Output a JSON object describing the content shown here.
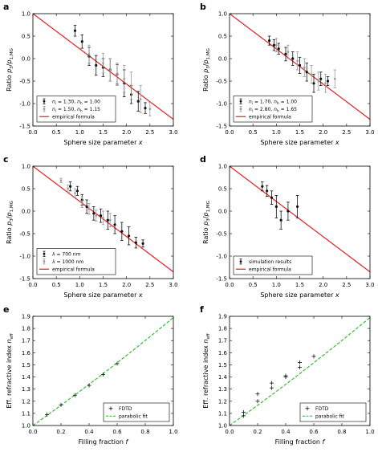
{
  "chart_data": [
    {
      "panel": "a",
      "type": "scatter",
      "xlabel_main": "Sphere size parameter ",
      "xlabel_var": "x",
      "ylabel_main": "Ratio ",
      "ylabel_frac": "p",
      "ylabel_sub1": "3",
      "ylabel_slash": "/",
      "ylabel_frac2": "p",
      "ylabel_sub2": "1,MG",
      "xlim": [
        0.0,
        3.0
      ],
      "ylim": [
        -1.5,
        1.0
      ],
      "xticks": [
        "0.0",
        "0.5",
        "1.0",
        "1.5",
        "2.0",
        "2.5",
        "3.0"
      ],
      "yticks": [
        "1.0",
        "0.5",
        "0.0",
        "-0.5",
        "-1.0",
        "-1.5"
      ],
      "legend_position": "bottom-left",
      "line": {
        "name": "empirical formula",
        "x": [
          0.0,
          3.0
        ],
        "y": [
          1.0,
          -1.35
        ],
        "color": "#e02020"
      },
      "series": [
        {
          "name": "n = 1.30, n = 1.00",
          "legend": {
            "a": "n",
            "as": "i",
            "b": " = 1.30, ",
            "c": "n",
            "cs": "h",
            "d": " = 1.00"
          },
          "color": "#111111",
          "x": [
            0.9,
            1.05,
            1.2,
            1.35,
            1.5,
            1.65,
            1.8,
            1.95,
            2.1,
            2.25,
            2.4
          ],
          "y": [
            0.62,
            0.38,
            0.05,
            -0.15,
            -0.2,
            -0.25,
            -0.35,
            -0.55,
            -0.8,
            -0.95,
            -1.1
          ],
          "err": [
            0.12,
            0.15,
            0.2,
            0.22,
            0.2,
            0.25,
            0.22,
            0.3,
            0.2,
            0.22,
            0.12
          ]
        },
        {
          "name": "n = 1.50, n = 1.15",
          "legend": {
            "a": "n",
            "as": "i",
            "b": " = 1.50, ",
            "c": "n",
            "cs": "h",
            "d": " = 1.15"
          },
          "color": "#999999",
          "x": [
            1.2,
            1.5,
            1.65,
            1.8,
            1.95,
            2.1,
            2.3,
            2.5
          ],
          "y": [
            0.1,
            -0.1,
            -0.25,
            -0.35,
            -0.45,
            -0.6,
            -0.9,
            -1.12
          ],
          "err": [
            0.2,
            0.22,
            0.25,
            0.25,
            0.3,
            0.3,
            0.3,
            0.15
          ]
        }
      ]
    },
    {
      "panel": "b",
      "type": "scatter",
      "xlabel_main": "Sphere size parameter ",
      "xlabel_var": "x",
      "ylabel_main": "Ratio ",
      "ylabel_frac": "p",
      "ylabel_sub1": "3",
      "ylabel_slash": "/",
      "ylabel_frac2": "p",
      "ylabel_sub2": "1,MG",
      "xlim": [
        0.0,
        3.0
      ],
      "ylim": [
        -1.5,
        1.0
      ],
      "xticks": [
        "0.0",
        "0.5",
        "1.0",
        "1.5",
        "2.0",
        "2.5",
        "3.0"
      ],
      "yticks": [
        "1.0",
        "0.5",
        "0.0",
        "-0.5",
        "-1.0",
        "-1.5"
      ],
      "legend_position": "bottom-left",
      "line": {
        "name": "empirical formula",
        "x": [
          0.0,
          3.0
        ],
        "y": [
          1.0,
          -1.35
        ],
        "color": "#e02020"
      },
      "series": [
        {
          "name": "n = 1.70, n = 1.00",
          "legend": {
            "a": "n",
            "as": "i",
            "b": " = 1.70, ",
            "c": "n",
            "cs": "h",
            "d": " = 1.00"
          },
          "color": "#111111",
          "x": [
            0.85,
            0.95,
            1.05,
            1.2,
            1.35,
            1.5,
            1.65,
            1.8,
            1.95,
            2.1
          ],
          "y": [
            0.4,
            0.3,
            0.22,
            0.1,
            0.0,
            -0.15,
            -0.3,
            -0.55,
            -0.45,
            -0.5
          ],
          "err": [
            0.1,
            0.12,
            0.12,
            0.15,
            0.15,
            0.18,
            0.2,
            0.2,
            0.15,
            0.1
          ]
        },
        {
          "name": "n = 2.80, n = 1.65",
          "legend": {
            "a": "n",
            "as": "i",
            "b": " = 2.80, ",
            "c": "n",
            "cs": "h",
            "d": " = 1.65"
          },
          "color": "#999999",
          "x": [
            1.0,
            1.25,
            1.45,
            1.6,
            1.75,
            1.9,
            2.05,
            2.25
          ],
          "y": [
            0.3,
            0.15,
            -0.05,
            -0.2,
            -0.35,
            -0.5,
            -0.55,
            -0.45
          ],
          "err": [
            0.15,
            0.15,
            0.2,
            0.2,
            0.2,
            0.2,
            0.2,
            0.2
          ]
        }
      ]
    },
    {
      "panel": "c",
      "type": "scatter",
      "xlabel_main": "Sphere size parameter ",
      "xlabel_var": "x",
      "ylabel_main": "Ratio ",
      "ylabel_frac": "p",
      "ylabel_sub1": "3",
      "ylabel_slash": "/",
      "ylabel_frac2": "p",
      "ylabel_sub2": "1,MG",
      "xlim": [
        0.0,
        3.0
      ],
      "ylim": [
        -1.5,
        1.0
      ],
      "xticks": [
        "0.0",
        "0.5",
        "1.0",
        "1.5",
        "2.0",
        "2.5",
        "3.0"
      ],
      "yticks": [
        "1.0",
        "0.5",
        "0.0",
        "-0.5",
        "-1.0",
        "-1.5"
      ],
      "legend_position": "bottom-left",
      "line": {
        "name": "empirical formula",
        "x": [
          0.0,
          3.0
        ],
        "y": [
          1.0,
          -1.35
        ],
        "color": "#e02020"
      },
      "series": [
        {
          "name": "λ = 700 nm",
          "legend": {
            "a": "λ",
            "as": "",
            "b": " = 700 nm",
            "c": "",
            "cs": "",
            "d": ""
          },
          "color": "#111111",
          "x": [
            0.8,
            0.95,
            1.05,
            1.15,
            1.3,
            1.45,
            1.6,
            1.75,
            1.9,
            2.05,
            2.2,
            2.35
          ],
          "y": [
            0.55,
            0.45,
            0.25,
            0.1,
            -0.05,
            -0.1,
            -0.2,
            -0.3,
            -0.45,
            -0.55,
            -0.7,
            -0.72
          ],
          "err": [
            0.1,
            0.1,
            0.12,
            0.15,
            0.15,
            0.15,
            0.2,
            0.2,
            0.2,
            0.2,
            0.12,
            0.08
          ]
        },
        {
          "name": "λ = 1000 nm",
          "legend": {
            "a": "λ",
            "as": "",
            "b": " = 1000 nm",
            "c": "",
            "cs": "",
            "d": ""
          },
          "color": "#999999",
          "x": [
            0.6,
            0.75,
            0.9,
            1.05,
            1.2,
            1.35,
            1.5,
            1.65
          ],
          "y": [
            0.68,
            0.5,
            0.4,
            0.2,
            0.05,
            -0.1,
            -0.15,
            -0.2
          ],
          "err": [
            0.05,
            0.08,
            0.1,
            0.12,
            0.12,
            0.12,
            0.15,
            0.15
          ]
        }
      ]
    },
    {
      "panel": "d",
      "type": "scatter",
      "xlabel_main": "Sphere size parameter ",
      "xlabel_var": "x",
      "ylabel_main": "Ratio ",
      "ylabel_frac": "p",
      "ylabel_sub1": "3",
      "ylabel_slash": "/",
      "ylabel_frac2": "p",
      "ylabel_sub2": "1,MG",
      "xlim": [
        0.0,
        3.0
      ],
      "ylim": [
        -1.5,
        1.0
      ],
      "xticks": [
        "0.0",
        "0.5",
        "1.0",
        "1.5",
        "2.0",
        "2.5",
        "3.0"
      ],
      "yticks": [
        "1.0",
        "0.5",
        "0.0",
        "-0.5",
        "-1.0",
        "-1.5"
      ],
      "legend_position": "bottom-left",
      "line": {
        "name": "empirical formula",
        "x": [
          0.0,
          3.0
        ],
        "y": [
          1.0,
          -1.35
        ],
        "color": "#e02020"
      },
      "series": [
        {
          "name": "simulation results",
          "legend": {
            "a": "",
            "as": "",
            "b": "simulation results",
            "c": "",
            "cs": "",
            "d": ""
          },
          "color": "#111111",
          "x": [
            0.7,
            0.8,
            0.9,
            1.0,
            1.1,
            1.25,
            1.45
          ],
          "y": [
            0.55,
            0.45,
            0.3,
            0.1,
            -0.2,
            0.0,
            0.1
          ],
          "err": [
            0.1,
            0.12,
            0.15,
            0.25,
            0.2,
            0.2,
            0.25
          ]
        }
      ]
    },
    {
      "panel": "e",
      "type": "scatter",
      "xlabel_main": "Filling fraction ",
      "xlabel_var": "f",
      "ylabel_main": "Eff. refractive index ",
      "ylabel_frac": "n",
      "ylabel_sub1": "eff",
      "ylabel_slash": "",
      "ylabel_frac2": "",
      "ylabel_sub2": "",
      "xlim": [
        0.0,
        1.0
      ],
      "ylim": [
        1.0,
        1.9
      ],
      "xticks": [
        "0.0",
        "0.2",
        "0.4",
        "0.6",
        "0.8",
        "1.0"
      ],
      "yticks": [
        "1.9",
        "1.8",
        "1.7",
        "1.6",
        "1.5",
        "1.4",
        "1.3",
        "1.2",
        "1.1",
        "1.0"
      ],
      "legend_position": "bottom-right",
      "fit": {
        "name": "parabolic fit",
        "color": "#22bb22",
        "a": 1.0,
        "b": 0.82,
        "c": 0.07
      },
      "series": [
        {
          "name": "FDTD",
          "legend": {
            "a": "",
            "as": "",
            "b": "FDTD",
            "c": "",
            "cs": "",
            "d": ""
          },
          "color": "#111111",
          "x": [
            0.1,
            0.2,
            0.3,
            0.4,
            0.5,
            0.6
          ],
          "y": [
            1.09,
            1.17,
            1.25,
            1.33,
            1.42,
            1.51
          ],
          "err": [
            0.005,
            0.005,
            0.005,
            0.008,
            0.008,
            0.008
          ]
        }
      ]
    },
    {
      "panel": "f",
      "type": "scatter",
      "xlabel_main": "Filling fraction ",
      "xlabel_var": "f",
      "ylabel_main": "Eff. refractive index ",
      "ylabel_frac": "n",
      "ylabel_sub1": "eff",
      "ylabel_slash": "",
      "ylabel_frac2": "",
      "ylabel_sub2": "",
      "xlim": [
        0.0,
        1.0
      ],
      "ylim": [
        1.0,
        1.9
      ],
      "xticks": [
        "0.0",
        "0.2",
        "0.4",
        "0.6",
        "0.8",
        "1.0"
      ],
      "yticks": [
        "1.9",
        "1.8",
        "1.7",
        "1.6",
        "1.5",
        "1.4",
        "1.3",
        "1.2",
        "1.1",
        "1.0"
      ],
      "legend_position": "bottom-right",
      "fit": {
        "name": "parabolic fit",
        "color": "#22bb22",
        "a": 1.0,
        "b": 0.82,
        "c": 0.07
      },
      "series": [
        {
          "name": "FDTD",
          "legend": {
            "a": "",
            "as": "",
            "b": "FDTD",
            "c": "",
            "cs": "",
            "d": ""
          },
          "color": "#111111",
          "x": [
            0.1,
            0.1,
            0.2,
            0.2,
            0.3,
            0.3,
            0.4,
            0.4,
            0.5,
            0.5,
            0.6
          ],
          "y": [
            1.08,
            1.11,
            1.2,
            1.26,
            1.31,
            1.35,
            1.4,
            1.41,
            1.48,
            1.52,
            1.57
          ],
          "err": [
            0.01,
            0.01,
            0.01,
            0.01,
            0.01,
            0.01,
            0.01,
            0.01,
            0.01,
            0.01,
            0.01
          ]
        }
      ]
    }
  ]
}
